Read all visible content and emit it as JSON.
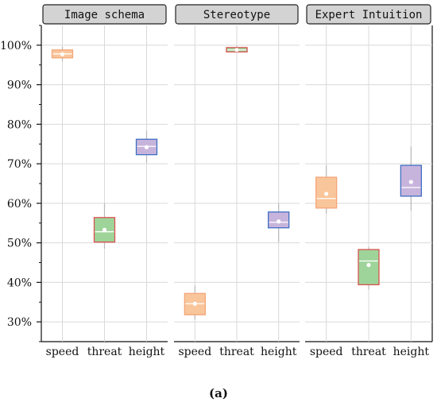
{
  "chart_data": {
    "type": "box",
    "caption": "(a)",
    "y_tick_labels": [
      "30%",
      "40%",
      "50%",
      "60%",
      "70%",
      "80%",
      "90%",
      "100%"
    ],
    "y_ticks": [
      30,
      40,
      50,
      60,
      70,
      80,
      90,
      100
    ],
    "ylim": [
      25,
      105
    ],
    "grid": true,
    "categories": [
      "speed",
      "threat",
      "height"
    ],
    "category_colors": {
      "speed": {
        "fill": "#f9c59a",
        "stroke": "#f4a77a"
      },
      "threat": {
        "fill": "#9ed49a",
        "stroke": "#d9534f"
      },
      "height": {
        "fill": "#c7b4dc",
        "stroke": "#3f6fc4"
      }
    },
    "panels": [
      {
        "title": "Image schema",
        "boxes": [
          {
            "category": "speed",
            "min": 96.0,
            "q1": 96.8,
            "median": 97.8,
            "mean": 97.7,
            "q3": 98.8,
            "max": 99.6
          },
          {
            "category": "threat",
            "min": 48.5,
            "q1": 50.2,
            "median": 52.8,
            "mean": 53.3,
            "q3": 56.4,
            "max": 60.0
          },
          {
            "category": "height",
            "min": 70.2,
            "q1": 72.3,
            "median": 74.4,
            "mean": 74.2,
            "q3": 76.2,
            "max": 78.4
          }
        ]
      },
      {
        "title": "Stereotype",
        "boxes": [
          {
            "category": "speed",
            "min": 30.6,
            "q1": 31.8,
            "median": 34.6,
            "mean": 34.6,
            "q3": 37.2,
            "max": 39.2
          },
          {
            "category": "threat",
            "min": 98.0,
            "q1": 98.3,
            "median": 98.8,
            "mean": 98.8,
            "q3": 99.4,
            "max": 99.8
          },
          {
            "category": "height",
            "min": 50.2,
            "q1": 53.8,
            "median": 55.2,
            "mean": 55.4,
            "q3": 57.8,
            "max": 60.0
          }
        ]
      },
      {
        "title": "Expert Intuition",
        "boxes": [
          {
            "category": "speed",
            "min": 57.4,
            "q1": 58.8,
            "median": 61.2,
            "mean": 62.4,
            "q3": 66.6,
            "max": 69.6
          },
          {
            "category": "threat",
            "min": 38.2,
            "q1": 39.4,
            "median": 45.4,
            "mean": 44.4,
            "q3": 48.3,
            "max": 49.0
          },
          {
            "category": "height",
            "min": 58.2,
            "q1": 61.8,
            "median": 64.0,
            "mean": 65.4,
            "q3": 69.6,
            "max": 74.4
          }
        ]
      }
    ]
  }
}
